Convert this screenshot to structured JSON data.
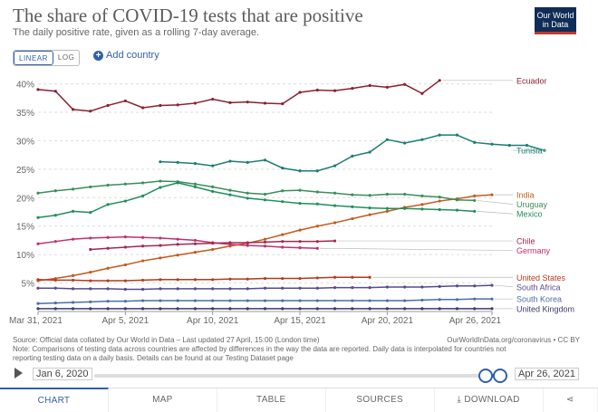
{
  "header": {
    "title": "The share of COVID-19 tests that are positive",
    "subtitle": "The daily positive rate, given as a rolling 7-day average.",
    "logo_line1": "Our World",
    "logo_line2": "in Data"
  },
  "controls": {
    "linear_label": "LINEAR",
    "log_label": "LOG",
    "add_country_label": "Add country"
  },
  "footer": {
    "source": "Source: Official data collated by Our World in Data – Last updated 27 April, 15:00 (London time)",
    "note_line1": "Note: Comparisons of testing data across countries are affected by differences in the way the data are reported. Daily data is interpolated for countries not",
    "note_line2": "reporting testing data on a daily basis. Details can be found at our Testing Dataset page",
    "credit": "OurWorldInData.org/coronavirus • CC BY"
  },
  "timeline": {
    "start_label": "Jan 6, 2020",
    "end_label": "Apr 26, 2021"
  },
  "tabs": {
    "chart": "CHART",
    "map": "MAP",
    "table": "TABLE",
    "sources": "SOURCES",
    "download": "DOWNLOAD"
  },
  "chart_data": {
    "type": "line",
    "title": "The share of COVID-19 tests that are positive",
    "xlabel": "",
    "ylabel": "",
    "ylim": [
      0,
      42
    ],
    "yticks": [
      5,
      10,
      15,
      20,
      25,
      30,
      35,
      40
    ],
    "ytick_labels": [
      "5%",
      "10%",
      "15%",
      "20%",
      "25%",
      "30%",
      "35%",
      "40%"
    ],
    "x_start_day": 0,
    "x_end_day": 26,
    "xticks": [
      0,
      5,
      10,
      15,
      20,
      26
    ],
    "xtick_labels": [
      "Mar 31, 2021",
      "Apr 5, 2021",
      "Apr 10, 2021",
      "Apr 15, 2021",
      "Apr 20, 2021",
      "Apr 26, 2021"
    ],
    "series": [
      {
        "name": "Ecuador",
        "color": "#8b2130",
        "start": 0,
        "values": [
          39,
          38.7,
          35.5,
          35.2,
          36.2,
          37,
          35.8,
          36.2,
          36.3,
          36.6,
          37.3,
          36.7,
          36.8,
          36.6,
          36.5,
          38.5,
          38.9,
          38.8,
          39.2,
          39.7,
          39.4,
          39.9,
          38.3,
          40.6
        ]
      },
      {
        "name": "Tunisia",
        "color": "#1b7e72",
        "start": 7,
        "values": [
          26.3,
          26.2,
          26,
          25.6,
          26.4,
          26.2,
          26.6,
          25.2,
          24.7,
          24.7,
          25.6,
          27.3,
          28,
          30.2,
          29.6,
          30.2,
          31,
          31,
          29.7,
          29.4,
          29.2,
          29.2,
          28.3
        ]
      },
      {
        "name": "India",
        "color": "#c35b1d",
        "start": 0,
        "values": [
          5.4,
          5.8,
          6.3,
          6.9,
          7.6,
          8.2,
          8.9,
          9.4,
          9.9,
          10.4,
          10.9,
          11.5,
          12,
          12.7,
          13.5,
          14.3,
          15,
          15.6,
          16.3,
          17,
          17.6,
          18.3,
          18.8,
          19.4,
          19.8,
          20.3,
          20.5
        ]
      },
      {
        "name": "Uruguay",
        "color": "#3c8e5c",
        "start": 0,
        "values": [
          20.8,
          21.2,
          21.5,
          21.9,
          22.2,
          22.4,
          22.6,
          22.9,
          22.8,
          22.4,
          21.9,
          21.3,
          20.8,
          20.6,
          21.2,
          21.3,
          21,
          20.8,
          20.5,
          20.4,
          20.6,
          20.6,
          20.3,
          20.1,
          19.6,
          19.5
        ]
      },
      {
        "name": "Mexico",
        "color": "#1f8f5c",
        "start": 0,
        "values": [
          16.5,
          16.9,
          17.6,
          17.4,
          18.8,
          19.4,
          20.3,
          21.8,
          22.6,
          21.9,
          21.1,
          20.5,
          19.9,
          19.6,
          19.3,
          19,
          18.9,
          18.6,
          18.4,
          18.2,
          18.1,
          18.1,
          18,
          17.9,
          17.8,
          17.6
        ]
      },
      {
        "name": "Germany",
        "color": "#c0306e",
        "start": 0,
        "values": [
          11.9,
          12.3,
          12.7,
          12.9,
          13,
          13.1,
          13,
          12.9,
          12.7,
          12.5,
          12.1,
          11.8,
          11.6,
          11.5,
          11.3,
          11.2,
          11.1
        ]
      },
      {
        "name": "Chile",
        "color": "#a0294f",
        "start": 3,
        "values": [
          10.9,
          11.1,
          11.3,
          11.5,
          11.6,
          11.8,
          11.9,
          12,
          12.1,
          12.1,
          12.2,
          12.3,
          12.3,
          12.3,
          12.4
        ]
      },
      {
        "name": "United States",
        "color": "#b53a21",
        "start": 0,
        "values": [
          5.6,
          5.5,
          5.5,
          5.4,
          5.4,
          5.4,
          5.5,
          5.6,
          5.6,
          5.6,
          5.6,
          5.7,
          5.7,
          5.8,
          5.8,
          5.8,
          5.9,
          6,
          6,
          6
        ]
      },
      {
        "name": "South Africa",
        "color": "#5a4a8f",
        "start": 0,
        "values": [
          4.1,
          4.1,
          4,
          4,
          4,
          3.9,
          3.9,
          4,
          4,
          4,
          4,
          4,
          4,
          4.1,
          4.1,
          4.1,
          4.1,
          4.2,
          4.2,
          4.2,
          4.3,
          4.3,
          4.3,
          4.4,
          4.5,
          4.5,
          4.6
        ]
      },
      {
        "name": "South Korea",
        "color": "#4a6fa5",
        "start": 0,
        "values": [
          1.4,
          1.5,
          1.6,
          1.7,
          1.8,
          1.8,
          1.9,
          1.9,
          1.9,
          1.9,
          1.9,
          1.9,
          1.9,
          1.9,
          1.9,
          1.9,
          1.9,
          1.9,
          1.9,
          1.9,
          1.9,
          1.9,
          2,
          2.1,
          2.1,
          2.2,
          2.2
        ]
      },
      {
        "name": "United Kingdom",
        "color": "#3b3b6b",
        "start": 0,
        "values": [
          0.5,
          0.5,
          0.5,
          0.5,
          0.5,
          0.5,
          0.5,
          0.5,
          0.5,
          0.5,
          0.5,
          0.5,
          0.5,
          0.5,
          0.5,
          0.5,
          0.5,
          0.5,
          0.5,
          0.5,
          0.5,
          0.5,
          0.5,
          0.5,
          0.5,
          0.5,
          0.5
        ]
      }
    ]
  }
}
